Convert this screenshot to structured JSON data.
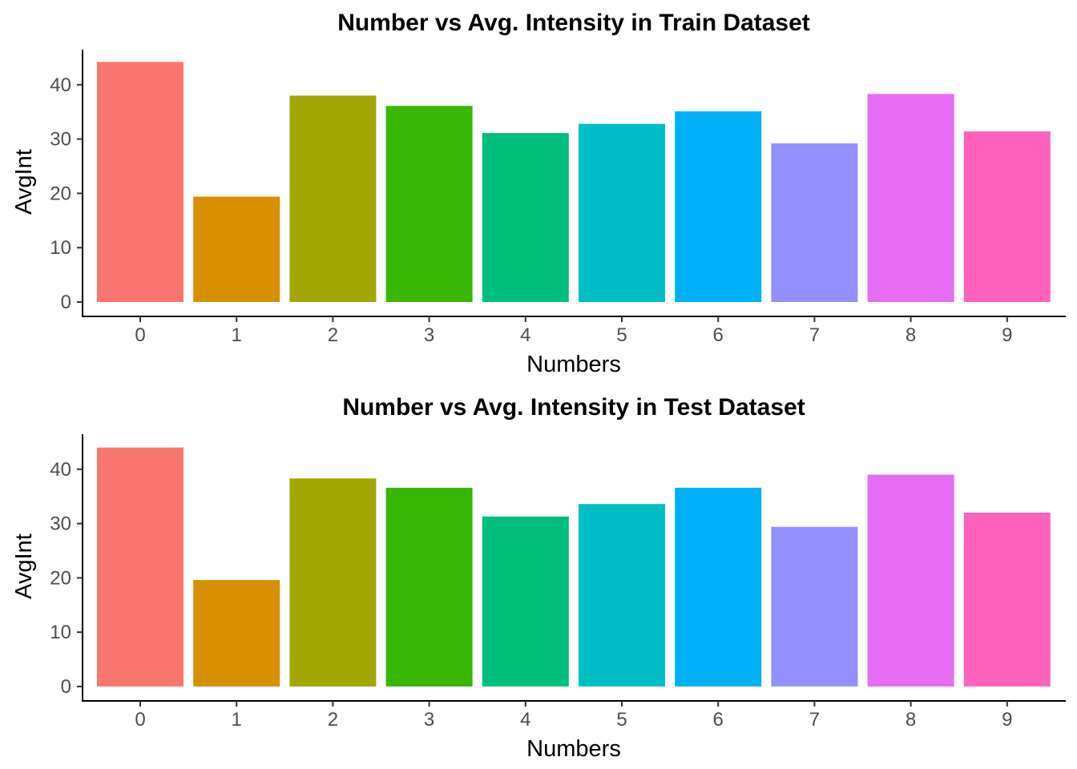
{
  "chart_data": [
    {
      "type": "bar",
      "title": "Number vs Avg. Intensity in Train Dataset",
      "xlabel": "Numbers",
      "ylabel": "AvgInt",
      "categories": [
        "0",
        "1",
        "2",
        "3",
        "4",
        "5",
        "6",
        "7",
        "8",
        "9"
      ],
      "values": [
        44.2,
        19.4,
        38.0,
        36.1,
        31.1,
        32.8,
        35.1,
        29.2,
        38.3,
        31.4
      ],
      "colors": [
        "#F8766D",
        "#D89000",
        "#A3A500",
        "#39B600",
        "#00BF7D",
        "#00BFC4",
        "#00B0F6",
        "#9590FF",
        "#E76BF3",
        "#FF62BC"
      ],
      "yticks": [
        "0",
        "10",
        "20",
        "30",
        "40"
      ],
      "ylim": [
        0,
        46
      ],
      "grid": false,
      "legend": "none"
    },
    {
      "type": "bar",
      "title": "Number vs Avg. Intensity in Test Dataset",
      "xlabel": "Numbers",
      "ylabel": "AvgInt",
      "categories": [
        "0",
        "1",
        "2",
        "3",
        "4",
        "5",
        "6",
        "7",
        "8",
        "9"
      ],
      "values": [
        44.0,
        19.6,
        38.3,
        36.6,
        31.3,
        33.6,
        36.6,
        29.4,
        39.0,
        32.0
      ],
      "colors": [
        "#F8766D",
        "#D89000",
        "#A3A500",
        "#39B600",
        "#00BF7D",
        "#00BFC4",
        "#00B0F6",
        "#9590FF",
        "#E76BF3",
        "#FF62BC"
      ],
      "yticks": [
        "0",
        "10",
        "20",
        "30",
        "40"
      ],
      "ylim": [
        0,
        46
      ],
      "grid": false,
      "legend": "none"
    }
  ]
}
